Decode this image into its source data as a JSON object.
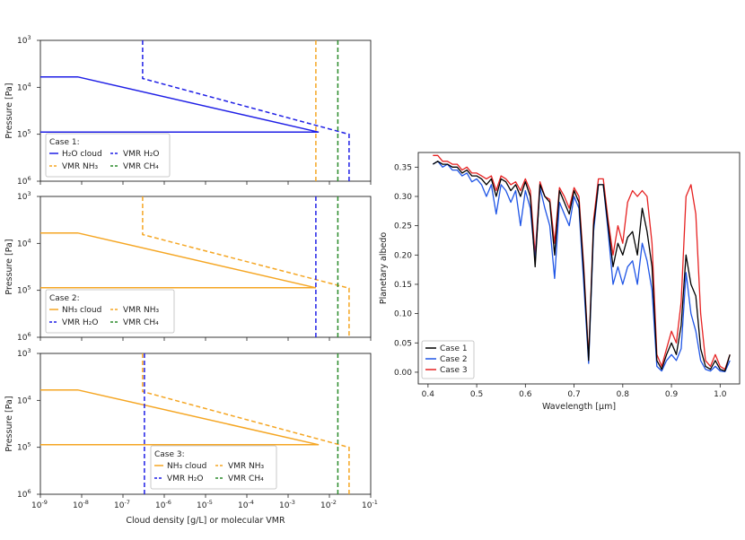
{
  "chart_data": [
    {
      "type": "line",
      "panel": "profiles-case-1",
      "xscale": "log",
      "yscale": "log",
      "y_inverted": true,
      "xlim": [
        1e-09,
        0.1
      ],
      "ylim": [
        1000,
        1000000
      ],
      "ylabel": "Pressure [Pa]",
      "yticks": [
        "10^3",
        "10^4",
        "10^5",
        "10^6"
      ],
      "legend_title": "Case 1:",
      "legend_position": "lower-left",
      "series": [
        {
          "name": "H₂O cloud",
          "style": "solid",
          "color": "#1f1fe6",
          "x": [
            1e-09,
            8e-09,
            0.0055,
            1e-09
          ],
          "y": [
            6000,
            6000,
            90000,
            90000
          ]
        },
        {
          "name": "VMR H₂O",
          "style": "dashed",
          "color": "#1f1fe6",
          "x": [
            3e-07,
            3e-07,
            0.03,
            0.03
          ],
          "y": [
            1000,
            6500,
            100000,
            1000000
          ]
        },
        {
          "name": "VMR NH₃",
          "style": "dashed",
          "color": "#f5a623",
          "x": [
            0.0047,
            0.0047
          ],
          "y": [
            1000,
            1000000
          ]
        },
        {
          "name": "VMR CH₄",
          "style": "dashed",
          "color": "#2a8a2a",
          "x": [
            0.016,
            0.016
          ],
          "y": [
            1000,
            1000000
          ]
        }
      ]
    },
    {
      "type": "line",
      "panel": "profiles-case-2",
      "xscale": "log",
      "yscale": "log",
      "y_inverted": true,
      "xlim": [
        1e-09,
        0.1
      ],
      "ylim": [
        1000,
        1000000
      ],
      "ylabel": "Pressure [Pa]",
      "yticks": [
        "10^3",
        "10^4",
        "10^5",
        "10^6"
      ],
      "legend_title": "Case 2:",
      "legend_position": "lower-left",
      "series": [
        {
          "name": "NH₃ cloud",
          "style": "solid",
          "color": "#f5a623",
          "x": [
            1e-09,
            8e-09,
            0.0047,
            1e-09
          ],
          "y": [
            6000,
            6000,
            88000,
            88000
          ]
        },
        {
          "name": "VMR NH₃",
          "style": "dashed",
          "color": "#f5a623",
          "x": [
            3e-07,
            3e-07,
            0.03,
            0.03
          ],
          "y": [
            1000,
            6500,
            90000,
            1000000
          ]
        },
        {
          "name": "VMR H₂O",
          "style": "dashed",
          "color": "#1f1fe6",
          "x": [
            0.0047,
            0.0047
          ],
          "y": [
            1000,
            1000000
          ]
        },
        {
          "name": "VMR CH₄",
          "style": "dashed",
          "color": "#2a8a2a",
          "x": [
            0.016,
            0.016
          ],
          "y": [
            1000,
            1000000
          ]
        }
      ]
    },
    {
      "type": "line",
      "panel": "profiles-case-3",
      "xscale": "log",
      "yscale": "log",
      "y_inverted": true,
      "xlim": [
        1e-09,
        0.1
      ],
      "ylim": [
        1000,
        1000000
      ],
      "xlabel": "Cloud density [g/L] or molecular VMR",
      "ylabel": "Pressure [Pa]",
      "yticks": [
        "10^3",
        "10^4",
        "10^5",
        "10^6"
      ],
      "xticks": [
        "10^-9",
        "10^-8",
        "10^-7",
        "10^-6",
        "10^-5",
        "10^-4",
        "10^-3",
        "10^-2",
        "10^-1"
      ],
      "legend_title": "Case 3:",
      "legend_position": "lower-center",
      "series": [
        {
          "name": "NH₃ cloud",
          "style": "solid",
          "color": "#f5a623",
          "x": [
            1e-09,
            8e-09,
            0.0055,
            1e-09
          ],
          "y": [
            6000,
            6000,
            88000,
            88000
          ]
        },
        {
          "name": "VMR NH₃",
          "style": "dashed",
          "color": "#f5a623",
          "x": [
            3e-07,
            3e-07,
            0.03,
            0.03
          ],
          "y": [
            1000,
            6500,
            100000,
            1000000
          ]
        },
        {
          "name": "VMR H₂O",
          "style": "dashed",
          "color": "#1f1fe6",
          "x": [
            3.3e-07,
            3.3e-07
          ],
          "y": [
            1000,
            1000000
          ]
        },
        {
          "name": "VMR CH₄",
          "style": "dashed",
          "color": "#2a8a2a",
          "x": [
            0.016,
            0.016
          ],
          "y": [
            1000,
            1000000
          ]
        }
      ]
    },
    {
      "type": "line",
      "panel": "albedo-spectrum",
      "xlim": [
        0.38,
        1.04
      ],
      "ylim": [
        -0.02,
        0.375
      ],
      "xlabel": "Wavelength [μm]",
      "ylabel": "Planetary albedo",
      "xticks": [
        "0.4",
        "0.5",
        "0.6",
        "0.7",
        "0.8",
        "0.9",
        "1.0"
      ],
      "yticks": [
        "0.00",
        "0.05",
        "0.10",
        "0.15",
        "0.20",
        "0.25",
        "0.30",
        "0.35"
      ],
      "legend_position": "lower-left",
      "x": [
        0.41,
        0.42,
        0.43,
        0.44,
        0.45,
        0.46,
        0.47,
        0.48,
        0.49,
        0.5,
        0.51,
        0.52,
        0.53,
        0.54,
        0.55,
        0.56,
        0.57,
        0.58,
        0.59,
        0.6,
        0.61,
        0.62,
        0.63,
        0.64,
        0.65,
        0.66,
        0.67,
        0.68,
        0.69,
        0.7,
        0.71,
        0.72,
        0.73,
        0.74,
        0.75,
        0.76,
        0.77,
        0.78,
        0.79,
        0.8,
        0.81,
        0.82,
        0.83,
        0.84,
        0.85,
        0.86,
        0.87,
        0.88,
        0.89,
        0.9,
        0.91,
        0.92,
        0.93,
        0.94,
        0.95,
        0.96,
        0.97,
        0.98,
        0.99,
        1.0,
        1.01,
        1.02
      ],
      "series": [
        {
          "name": "Case 1",
          "color": "#000000",
          "values": [
            0.355,
            0.36,
            0.355,
            0.355,
            0.35,
            0.35,
            0.34,
            0.345,
            0.335,
            0.335,
            0.33,
            0.32,
            0.33,
            0.3,
            0.33,
            0.325,
            0.31,
            0.32,
            0.3,
            0.325,
            0.3,
            0.18,
            0.32,
            0.3,
            0.29,
            0.2,
            0.31,
            0.29,
            0.27,
            0.31,
            0.29,
            0.17,
            0.02,
            0.25,
            0.32,
            0.32,
            0.25,
            0.18,
            0.22,
            0.2,
            0.23,
            0.24,
            0.2,
            0.28,
            0.24,
            0.18,
            0.02,
            0.005,
            0.03,
            0.05,
            0.03,
            0.08,
            0.2,
            0.15,
            0.13,
            0.04,
            0.01,
            0.005,
            0.02,
            0.005,
            0.002,
            0.03
          ]
        },
        {
          "name": "Case 2",
          "color": "#1f55e6",
          "values": [
            0.355,
            0.36,
            0.35,
            0.355,
            0.345,
            0.345,
            0.335,
            0.34,
            0.325,
            0.33,
            0.32,
            0.3,
            0.32,
            0.27,
            0.32,
            0.31,
            0.29,
            0.31,
            0.25,
            0.31,
            0.28,
            0.19,
            0.315,
            0.28,
            0.25,
            0.16,
            0.29,
            0.27,
            0.25,
            0.3,
            0.28,
            0.15,
            0.015,
            0.24,
            0.32,
            0.32,
            0.24,
            0.15,
            0.18,
            0.15,
            0.18,
            0.19,
            0.15,
            0.22,
            0.19,
            0.14,
            0.01,
            0.002,
            0.02,
            0.03,
            0.02,
            0.04,
            0.17,
            0.1,
            0.07,
            0.02,
            0.005,
            0.002,
            0.01,
            0.002,
            0.001,
            0.02
          ]
        },
        {
          "name": "Case 3",
          "color": "#e62222",
          "values": [
            0.37,
            0.37,
            0.36,
            0.36,
            0.355,
            0.355,
            0.345,
            0.35,
            0.34,
            0.34,
            0.335,
            0.33,
            0.335,
            0.31,
            0.335,
            0.33,
            0.32,
            0.325,
            0.31,
            0.33,
            0.31,
            0.2,
            0.325,
            0.3,
            0.295,
            0.22,
            0.315,
            0.3,
            0.28,
            0.315,
            0.3,
            0.18,
            0.025,
            0.26,
            0.33,
            0.33,
            0.26,
            0.2,
            0.25,
            0.22,
            0.29,
            0.31,
            0.3,
            0.31,
            0.3,
            0.22,
            0.03,
            0.01,
            0.04,
            0.07,
            0.05,
            0.12,
            0.3,
            0.32,
            0.27,
            0.1,
            0.02,
            0.01,
            0.03,
            0.01,
            0.005,
            0.03
          ]
        }
      ]
    }
  ]
}
